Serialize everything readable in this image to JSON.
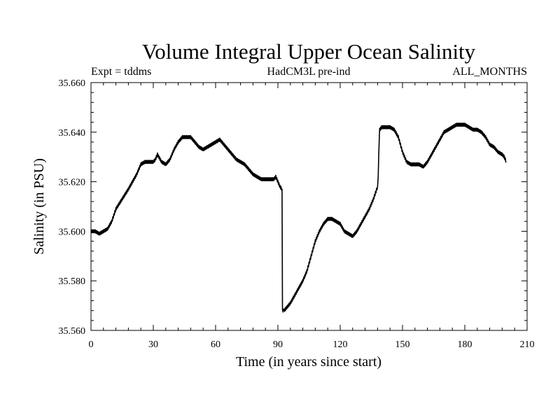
{
  "chart_data": {
    "type": "line",
    "title": "Volume Integral Upper Ocean Salinity",
    "subtitle_left": "Expt = tddms",
    "subtitle_center": "HadCM3L pre-ind",
    "subtitle_right": "ALL_MONTHS",
    "xlabel": "Time (in years since start)",
    "ylabel": "Salinity (in PSU)",
    "xlim": [
      0,
      210
    ],
    "ylim": [
      35.56,
      35.66
    ],
    "x_ticks": [
      0,
      30,
      60,
      90,
      120,
      150,
      180,
      210
    ],
    "x_tick_labels": [
      "0",
      "30",
      "60",
      "90",
      "120",
      "150",
      "180",
      "210"
    ],
    "y_ticks": [
      35.56,
      35.58,
      35.6,
      35.62,
      35.64,
      35.66
    ],
    "y_tick_labels": [
      "35.560",
      "35.580",
      "35.600",
      "35.620",
      "35.640",
      "35.660"
    ],
    "grid": false,
    "line_color": "#000000",
    "series": [
      {
        "x": [
          0,
          2,
          4,
          6,
          8,
          10,
          12,
          15,
          18,
          20,
          22,
          24,
          26,
          28,
          30,
          31,
          32,
          34,
          36,
          38,
          40,
          42,
          44,
          46,
          48,
          50,
          52,
          54,
          56,
          58,
          60,
          62,
          64,
          66,
          68,
          70,
          72,
          74,
          76,
          78,
          80,
          82,
          84,
          86,
          88,
          89,
          90,
          91,
          92,
          92.2,
          93,
          94,
          96,
          98,
          100,
          102,
          104,
          106,
          108,
          110,
          112,
          114,
          116,
          118,
          120,
          122,
          124,
          126,
          128,
          130,
          132,
          134,
          136,
          138,
          138.3,
          138.6,
          139,
          140,
          142,
          144,
          146,
          148,
          150,
          152,
          154,
          156,
          158,
          160,
          162,
          164,
          166,
          168,
          170,
          172,
          174,
          176,
          178,
          180,
          182,
          184,
          186,
          188,
          190,
          192,
          194,
          196,
          198,
          199,
          200
        ],
        "y": [
          35.6,
          35.6,
          35.599,
          35.6,
          35.601,
          35.604,
          35.609,
          35.613,
          35.617,
          35.62,
          35.623,
          35.627,
          35.628,
          35.628,
          35.628,
          35.629,
          35.631,
          35.628,
          35.627,
          35.629,
          35.633,
          35.636,
          35.638,
          35.638,
          35.638,
          35.636,
          35.634,
          35.633,
          35.634,
          35.635,
          35.636,
          35.637,
          35.635,
          35.633,
          35.631,
          35.629,
          35.628,
          35.627,
          35.625,
          35.623,
          35.622,
          35.621,
          35.621,
          35.621,
          35.621,
          35.622,
          35.62,
          35.618,
          35.617,
          35.568,
          35.568,
          35.569,
          35.571,
          35.574,
          35.577,
          35.58,
          35.584,
          35.59,
          35.596,
          35.6,
          35.603,
          35.605,
          35.605,
          35.604,
          35.603,
          35.6,
          35.599,
          35.598,
          35.6,
          35.603,
          35.606,
          35.609,
          35.613,
          35.618,
          35.622,
          35.632,
          35.641,
          35.642,
          35.642,
          35.642,
          35.641,
          35.638,
          35.632,
          35.628,
          35.627,
          35.627,
          35.627,
          35.626,
          35.628,
          35.631,
          35.634,
          35.637,
          35.64,
          35.641,
          35.642,
          35.643,
          35.643,
          35.643,
          35.642,
          35.641,
          35.641,
          35.64,
          35.638,
          35.635,
          35.634,
          35.632,
          35.631,
          35.63,
          35.628
        ]
      }
    ]
  }
}
